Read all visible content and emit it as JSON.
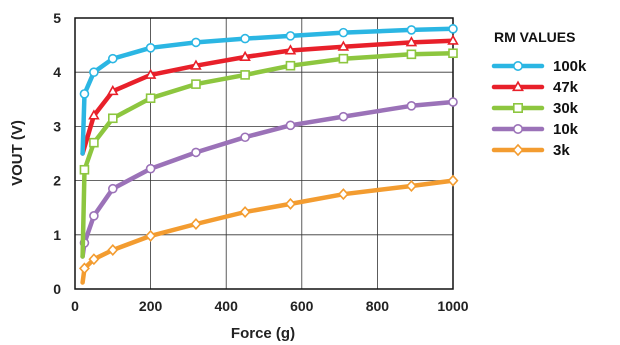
{
  "chart_data": {
    "type": "line",
    "xlabel": "Force (g)",
    "ylabel": "VOUT (V)",
    "xlim": [
      0,
      1000
    ],
    "ylim": [
      0,
      5
    ],
    "x_ticks": [
      0,
      200,
      400,
      600,
      800,
      1000
    ],
    "y_ticks": [
      0,
      1,
      2,
      3,
      4,
      5
    ],
    "grid": true,
    "legend": {
      "title": "RM VALUES",
      "placement": "right"
    },
    "series": [
      {
        "name": "100k",
        "color": "#2bb6e3",
        "marker": "circle",
        "x": [
          20,
          25,
          50,
          100,
          200,
          320,
          450,
          570,
          710,
          890,
          1000
        ],
        "y": [
          2.5,
          3.6,
          4.0,
          4.25,
          4.45,
          4.55,
          4.62,
          4.67,
          4.73,
          4.78,
          4.8
        ]
      },
      {
        "name": "47k",
        "color": "#e8202a",
        "marker": "triangle",
        "x": [
          20,
          50,
          100,
          200,
          320,
          450,
          570,
          710,
          890,
          1000
        ],
        "y": [
          2.5,
          3.2,
          3.65,
          3.95,
          4.12,
          4.28,
          4.4,
          4.47,
          4.55,
          4.58
        ]
      },
      {
        "name": "30k",
        "color": "#8dc63f",
        "marker": "square",
        "x": [
          20,
          25,
          50,
          100,
          200,
          320,
          450,
          570,
          710,
          890,
          1000
        ],
        "y": [
          0.6,
          2.2,
          2.7,
          3.15,
          3.52,
          3.78,
          3.95,
          4.12,
          4.25,
          4.33,
          4.35
        ]
      },
      {
        "name": "10k",
        "color": "#9b72b8",
        "marker": "circle",
        "x": [
          20,
          25,
          50,
          100,
          200,
          320,
          450,
          570,
          710,
          890,
          1000
        ],
        "y": [
          0.6,
          0.85,
          1.35,
          1.85,
          2.22,
          2.52,
          2.8,
          3.02,
          3.18,
          3.38,
          3.45
        ]
      },
      {
        "name": "3k",
        "color": "#f39c30",
        "marker": "diamond",
        "x": [
          20,
          25,
          50,
          100,
          200,
          320,
          450,
          570,
          710,
          890,
          1000
        ],
        "y": [
          0.12,
          0.38,
          0.55,
          0.72,
          0.98,
          1.2,
          1.42,
          1.57,
          1.75,
          1.9,
          2.0
        ]
      }
    ]
  }
}
